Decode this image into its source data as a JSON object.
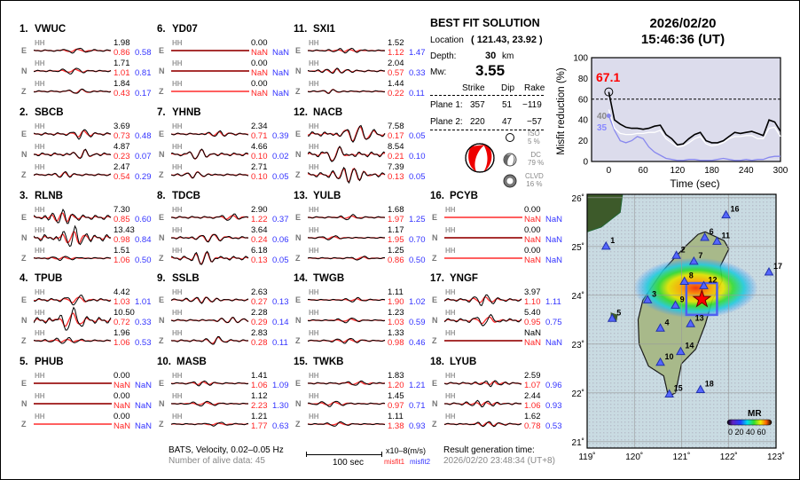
{
  "header": {
    "date": "2026/02/20",
    "time": "15:46:36  (UT)"
  },
  "solution": {
    "title": "BEST FIT SOLUTION",
    "location_label": "Location",
    "location_value": "( 121.43,  23.92 )",
    "depth_label": "Depth:",
    "depth_value": "30",
    "depth_unit": "km",
    "mw_label": "Mw:",
    "mw_value": "3.55",
    "columns": [
      "Strike",
      "Dip",
      "Rake"
    ],
    "planes": [
      {
        "label": "Plane 1:",
        "strike": "357",
        "dip": "51",
        "rake": "−119"
      },
      {
        "label": "Plane 2:",
        "strike": "220",
        "dip": "47",
        "rake": "−57"
      }
    ],
    "components": [
      {
        "name": "ISO",
        "pct": "5  %"
      },
      {
        "name": "DC",
        "pct": "79 %"
      },
      {
        "name": "CLVD",
        "pct": "16 %"
      }
    ]
  },
  "stations": [
    {
      "num": "1.",
      "name": "VWUC",
      "comps": [
        [
          "E",
          "1.98",
          "0.86",
          "0.58"
        ],
        [
          "N",
          "1.71",
          "1.01",
          "0.81"
        ],
        [
          "Z",
          "1.84",
          "0.43",
          "0.17"
        ]
      ]
    },
    {
      "num": "2.",
      "name": "SBCB",
      "comps": [
        [
          "E",
          "3.69",
          "0.73",
          "0.48"
        ],
        [
          "N",
          "4.87",
          "0.23",
          "0.07"
        ],
        [
          "Z",
          "2.47",
          "0.54",
          "0.29"
        ]
      ]
    },
    {
      "num": "3.",
      "name": "RLNB",
      "comps": [
        [
          "E",
          "7.30",
          "0.85",
          "0.60"
        ],
        [
          "N",
          "13.43",
          "0.98",
          "0.84"
        ],
        [
          "Z",
          "1.51",
          "1.06",
          "0.50"
        ]
      ]
    },
    {
      "num": "4.",
      "name": "TPUB",
      "comps": [
        [
          "E",
          "4.42",
          "1.03",
          "1.01"
        ],
        [
          "N",
          "10.50",
          "0.72",
          "0.33"
        ],
        [
          "Z",
          "1.96",
          "1.06",
          "0.53"
        ]
      ]
    },
    {
      "num": "5.",
      "name": "PHUB",
      "comps": [
        [
          "E",
          "0.00",
          "NaN",
          "NaN"
        ],
        [
          "N",
          "0.00",
          "NaN",
          "NaN"
        ],
        [
          "Z",
          "0.00",
          "NaN",
          "NaN"
        ]
      ]
    },
    {
      "num": "6.",
      "name": "YD07",
      "comps": [
        [
          "E",
          "0.00",
          "NaN",
          "NaN"
        ],
        [
          "N",
          "0.00",
          "NaN",
          "NaN"
        ],
        [
          "Z",
          "0.00",
          "NaN",
          "NaN"
        ]
      ]
    },
    {
      "num": "7.",
      "name": "YHNB",
      "comps": [
        [
          "E",
          "2.34",
          "0.71",
          "0.39"
        ],
        [
          "N",
          "4.66",
          "0.10",
          "0.02"
        ],
        [
          "Z",
          "2.71",
          "0.10",
          "0.05"
        ]
      ]
    },
    {
      "num": "8.",
      "name": "TDCB",
      "comps": [
        [
          "E",
          "2.90",
          "1.22",
          "0.37"
        ],
        [
          "N",
          "3.64",
          "0.24",
          "0.06"
        ],
        [
          "Z",
          "6.18",
          "0.13",
          "0.05"
        ]
      ]
    },
    {
      "num": "9.",
      "name": "SSLB",
      "comps": [
        [
          "E",
          "2.63",
          "0.27",
          "0.13"
        ],
        [
          "N",
          "2.28",
          "0.29",
          "0.14"
        ],
        [
          "Z",
          "2.83",
          "0.28",
          "0.11"
        ]
      ]
    },
    {
      "num": "10.",
      "name": "MASB",
      "comps": [
        [
          "E",
          "1.41",
          "1.06",
          "1.09"
        ],
        [
          "N",
          "1.12",
          "2.23",
          "1.30"
        ],
        [
          "Z",
          "1.21",
          "1.77",
          "0.63"
        ]
      ]
    },
    {
      "num": "11.",
      "name": "SXI1",
      "comps": [
        [
          "E",
          "1.52",
          "1.12",
          "1.47"
        ],
        [
          "N",
          "2.04",
          "0.57",
          "0.33"
        ],
        [
          "Z",
          "1.44",
          "0.22",
          "0.11"
        ]
      ]
    },
    {
      "num": "12.",
      "name": "NACB",
      "comps": [
        [
          "E",
          "7.58",
          "0.17",
          "0.05"
        ],
        [
          "N",
          "8.54",
          "0.21",
          "0.10"
        ],
        [
          "Z",
          "7.39",
          "0.13",
          "0.05"
        ]
      ]
    },
    {
      "num": "13.",
      "name": "YULB",
      "comps": [
        [
          "E",
          "1.68",
          "1.97",
          "1.25"
        ],
        [
          "N",
          "1.17",
          "1.95",
          "0.70"
        ],
        [
          "Z",
          "1.25",
          "0.86",
          "0.50"
        ]
      ]
    },
    {
      "num": "14.",
      "name": "TWGB",
      "comps": [
        [
          "E",
          "1.11",
          "1.90",
          "1.02"
        ],
        [
          "N",
          "1.23",
          "1.03",
          "0.59"
        ],
        [
          "Z",
          "1.33",
          "0.98",
          "0.46"
        ]
      ]
    },
    {
      "num": "15.",
      "name": "TWKB",
      "comps": [
        [
          "E",
          "1.83",
          "1.20",
          "1.21"
        ],
        [
          "N",
          "1.45",
          "0.97",
          "0.71"
        ],
        [
          "Z",
          "1.11",
          "1.38",
          "0.93"
        ]
      ]
    },
    {
      "num": "16.",
      "name": "PCYB",
      "comps": [
        [
          "E",
          "0.00",
          "NaN",
          "NaN"
        ],
        [
          "N",
          "0.00",
          "NaN",
          "NaN"
        ],
        [
          "Z",
          "0.00",
          "NaN",
          "NaN"
        ]
      ]
    },
    {
      "num": "17.",
      "name": "YNGF",
      "comps": [
        [
          "E",
          "3.97",
          "1.10",
          "1.11"
        ],
        [
          "N",
          "5.40",
          "0.95",
          "0.75"
        ],
        [
          "Z",
          "NaN",
          "NaN",
          "NaN"
        ]
      ]
    },
    {
      "num": "18.",
      "name": "LYUB",
      "comps": [
        [
          "E",
          "2.59",
          "1.07",
          "0.96"
        ],
        [
          "N",
          "2.44",
          "1.06",
          "0.93"
        ],
        [
          "Z",
          "1.62",
          "0.78",
          "0.53"
        ]
      ]
    }
  ],
  "channel_label": "HH",
  "footer": {
    "filter": "BATS, Velocity, 0.02–0.05 Hz",
    "alive": "Number of alive data: 45",
    "scale_label": "100 sec",
    "units": "x10–8(m/s)",
    "misfit1": "misfit1",
    "misfit2": "misfit2",
    "gen_label": "Result generation time:",
    "gen_time": "2026/02/20 23:48:34 (UT+8)"
  },
  "chart_data": {
    "type": "line",
    "xlabel": "Time (sec)",
    "ylabel": "Misfit reduction (%)",
    "xlim": [
      -30,
      300
    ],
    "ylim": [
      0,
      100
    ],
    "xticks": [
      "0",
      "60",
      "120",
      "180",
      "240",
      "300"
    ],
    "yticks": [
      "0",
      "20",
      "40",
      "60",
      "80",
      "100"
    ],
    "threshold": 60,
    "peak_label": "67.1",
    "label_white": "40",
    "label_blue": "35",
    "x": [
      0,
      10,
      20,
      30,
      40,
      50,
      60,
      70,
      80,
      90,
      100,
      110,
      120,
      130,
      140,
      150,
      160,
      170,
      180,
      190,
      200,
      210,
      220,
      230,
      240,
      250,
      260,
      270,
      280,
      290,
      300
    ],
    "series": [
      {
        "name": "best",
        "color": "#000000",
        "values": [
          67,
          40,
          36,
          33,
          32,
          32,
          31,
          32,
          34,
          35,
          26,
          22,
          16,
          17,
          22,
          26,
          28,
          20,
          18,
          18,
          20,
          24,
          28,
          27,
          28,
          29,
          27,
          25,
          40,
          38,
          29
        ]
      },
      {
        "name": "second",
        "color": "#ffffff",
        "values": [
          50,
          32,
          27,
          26,
          26,
          27,
          27,
          28,
          28,
          30,
          22,
          18,
          14,
          15,
          18,
          22,
          24,
          17,
          15,
          16,
          18,
          22,
          24,
          24,
          25,
          25,
          22,
          22,
          32,
          33,
          24
        ]
      },
      {
        "name": "third",
        "color": "#8888ee",
        "values": [
          44,
          30,
          20,
          18,
          20,
          24,
          22,
          14,
          9,
          6,
          3,
          2,
          1,
          1,
          2,
          2,
          1,
          1,
          1,
          2,
          3,
          2,
          1,
          1,
          2,
          1,
          2,
          2,
          4,
          5,
          5
        ]
      }
    ]
  },
  "map": {
    "lon_ticks": [
      "119˚",
      "120˚",
      "121˚",
      "122˚",
      "123˚"
    ],
    "lat_ticks": [
      "21˚",
      "22˚",
      "23˚",
      "24˚",
      "25˚",
      "26˚"
    ],
    "epicenter": [
      121.43,
      23.92
    ],
    "colorbar_title": "MR",
    "colorbar_ticks": "0 20 40 60",
    "stations": [
      {
        "id": "1",
        "lon": 119.4,
        "lat": 25.0
      },
      {
        "id": "2",
        "lon": 120.89,
        "lat": 24.81
      },
      {
        "id": "3",
        "lon": 120.28,
        "lat": 23.9
      },
      {
        "id": "4",
        "lon": 120.55,
        "lat": 23.32
      },
      {
        "id": "5",
        "lon": 119.53,
        "lat": 23.52
      },
      {
        "id": "6",
        "lon": 121.49,
        "lat": 25.18
      },
      {
        "id": "7",
        "lon": 121.26,
        "lat": 24.69
      },
      {
        "id": "8",
        "lon": 121.06,
        "lat": 24.28
      },
      {
        "id": "9",
        "lon": 120.87,
        "lat": 23.79
      },
      {
        "id": "10",
        "lon": 120.55,
        "lat": 22.62
      },
      {
        "id": "11",
        "lon": 121.75,
        "lat": 25.1
      },
      {
        "id": "12",
        "lon": 121.47,
        "lat": 24.19
      },
      {
        "id": "13",
        "lon": 121.19,
        "lat": 23.41
      },
      {
        "id": "14",
        "lon": 120.98,
        "lat": 22.84
      },
      {
        "id": "15",
        "lon": 120.74,
        "lat": 21.97
      },
      {
        "id": "16",
        "lon": 121.94,
        "lat": 25.64
      },
      {
        "id": "17",
        "lon": 122.85,
        "lat": 24.47
      },
      {
        "id": "18",
        "lon": 121.4,
        "lat": 22.06
      }
    ]
  }
}
